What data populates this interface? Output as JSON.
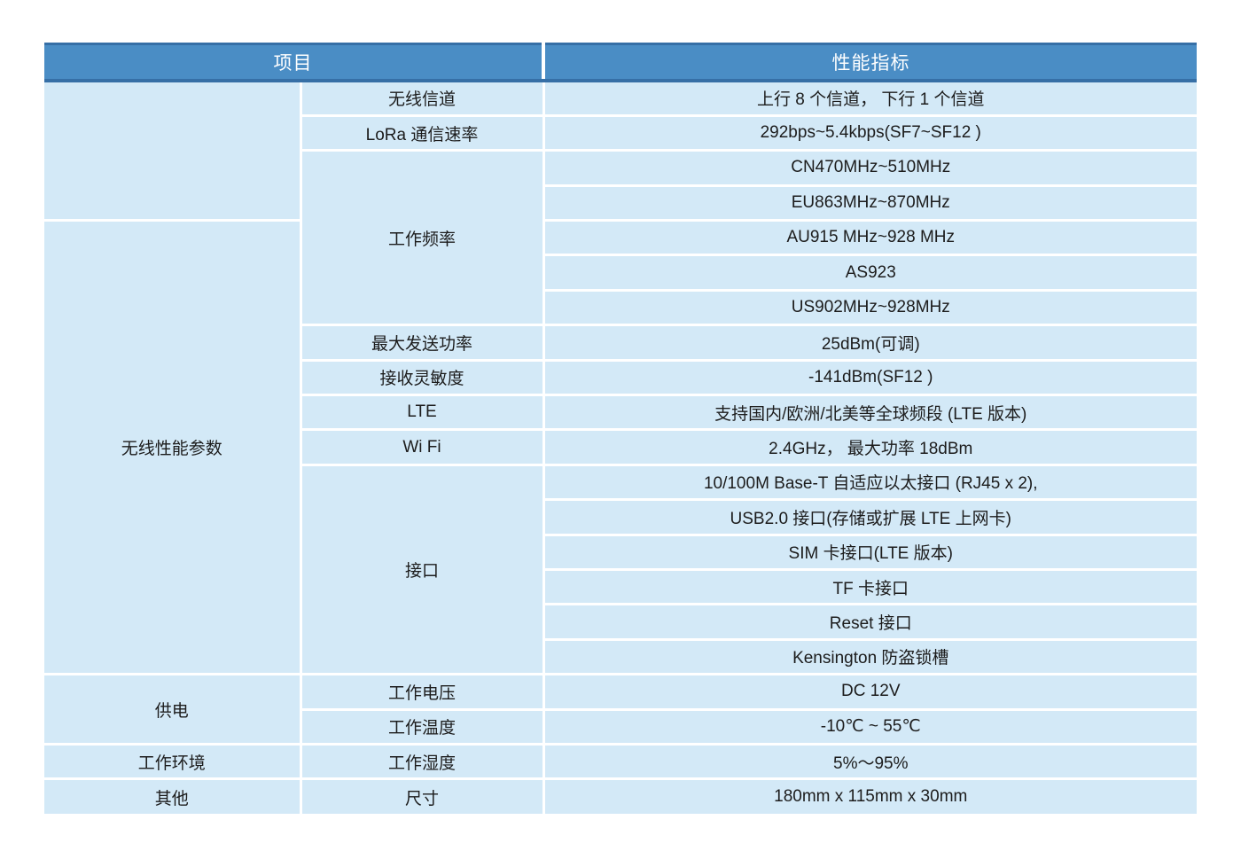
{
  "colors": {
    "header_bg": "#4a8dc5",
    "header_border": "#366fa6",
    "cell_bg": "#d3e9f7",
    "gridline": "#ffffff",
    "header_text": "#ffffff",
    "body_text": "#1c1c1c"
  },
  "spec_table": {
    "header": {
      "item": "项目",
      "spec": "性能指标"
    },
    "groups": [
      {
        "label": ""
      },
      {
        "label": "无线性能参数"
      },
      {
        "label": "供电"
      },
      {
        "label": "工作环境"
      },
      {
        "label": "其他"
      }
    ],
    "items": [
      {
        "label": "无线信道"
      },
      {
        "label": "LoRa 通信速率"
      },
      {
        "label": "工作频率"
      },
      {
        "label": "最大发送功率"
      },
      {
        "label": "接收灵敏度"
      },
      {
        "label": "LTE"
      },
      {
        "label": "Wi Fi"
      },
      {
        "label": "接口"
      },
      {
        "label": "工作电压"
      },
      {
        "label": "工作温度"
      },
      {
        "label": "工作湿度"
      },
      {
        "label": "尺寸"
      }
    ],
    "values": [
      "上行 8 个信道， 下行 1 个信道",
      "292bps~5.4kbps(SF7~SF12 )",
      "CN470MHz~510MHz",
      "EU863MHz~870MHz",
      "AU915 MHz~928 MHz",
      "AS923",
      "US902MHz~928MHz",
      "25dBm(可调)",
      "-141dBm(SF12 )",
      "支持国内/欧洲/北美等全球频段 (LTE 版本)",
      "2.4GHz， 最大功率 18dBm",
      "10/100M Base-T 自适应以太接口 (RJ45 x 2),",
      "USB2.0 接口(存储或扩展 LTE 上网卡)",
      "SIM 卡接口(LTE 版本)",
      "TF 卡接口",
      "Reset 接口",
      "Kensington 防盗锁槽",
      "DC 12V",
      "-10℃ ~ 55℃",
      "5%～95%",
      "180mm x 115mm x 30mm"
    ]
  }
}
